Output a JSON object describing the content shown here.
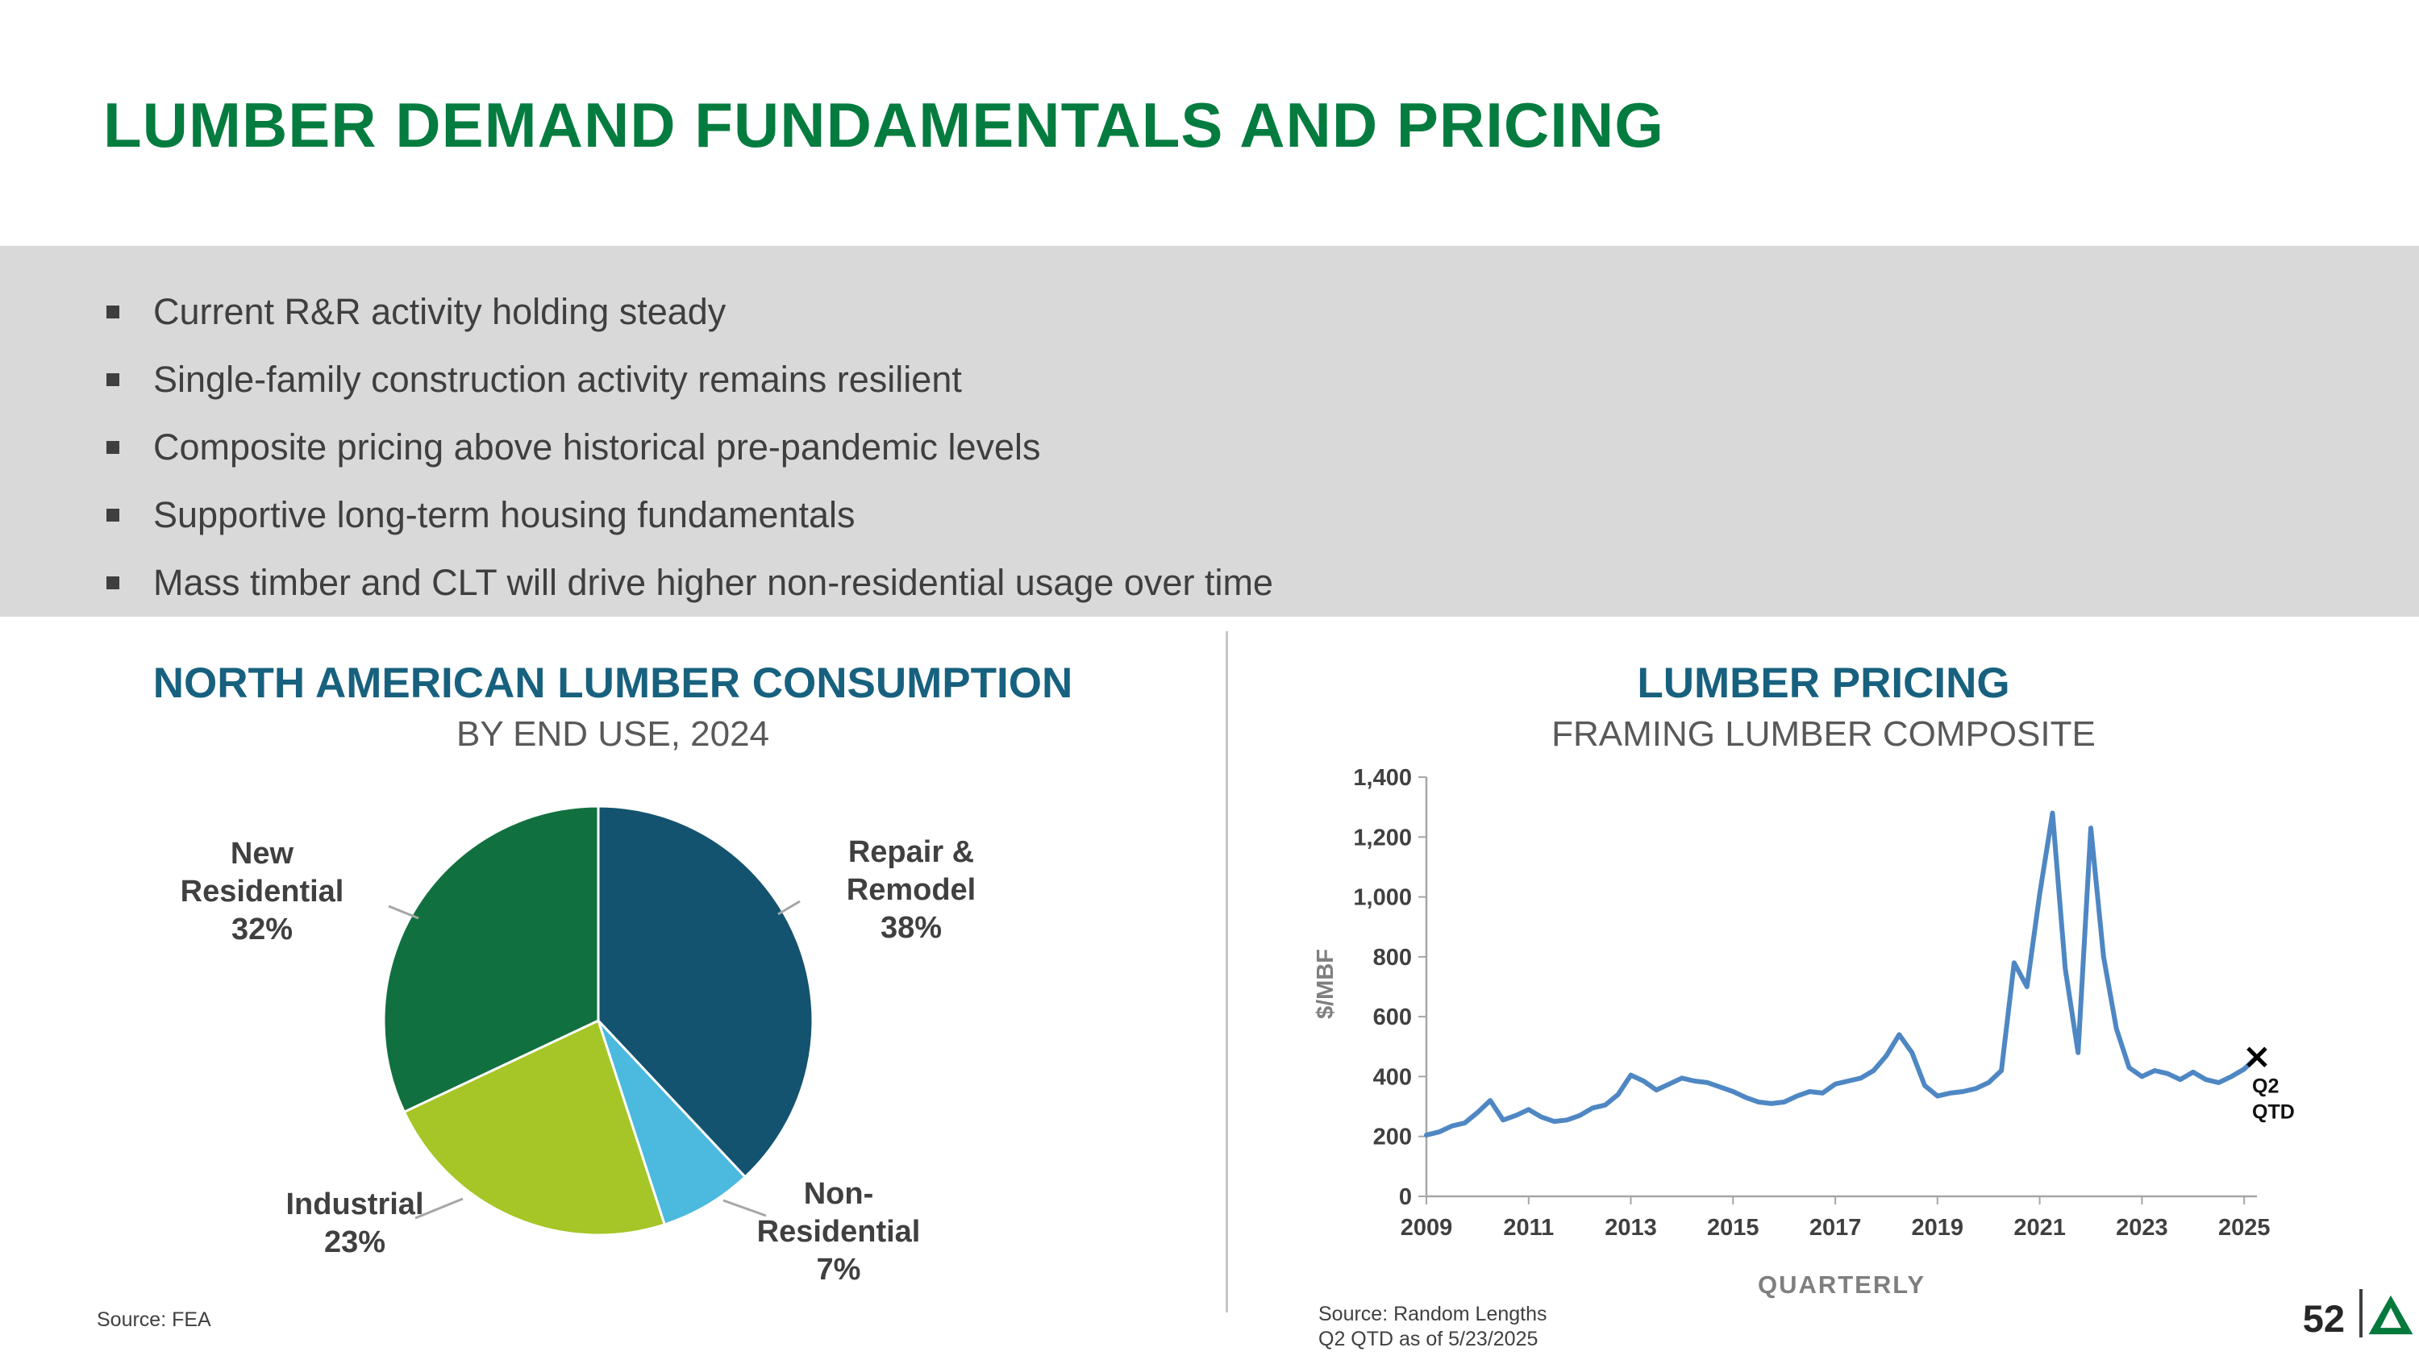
{
  "slide": {
    "title": "LUMBER DEMAND FUNDAMENTALS AND PRICING",
    "page_number": "52"
  },
  "highlights": {
    "items": [
      "Current R&R activity holding steady",
      "Single-family construction activity remains resilient",
      "Composite pricing above historical pre-pandemic levels",
      "Supportive long-term housing fundamentals",
      "Mass timber and CLT will drive higher non-residential usage over time"
    ]
  },
  "pie_section": {
    "title": "NORTH AMERICAN LUMBER CONSUMPTION",
    "subtitle": "BY END USE, 2024",
    "source": "Source: FEA"
  },
  "line_section": {
    "title": "LUMBER PRICING",
    "subtitle": "FRAMING LUMBER COMPOSITE",
    "source_line1": "Source: Random Lengths",
    "source_line2": "Q2 QTD as of 5/23/2025"
  },
  "colors": {
    "title_green": "#047c3f",
    "heading_teal": "#17617f",
    "band_gray": "#d9d9d9",
    "bullet_gray": "#3f3f3f",
    "logo_green": "#05793c"
  },
  "chart_data": [
    {
      "type": "pie",
      "title": "NORTH AMERICAN LUMBER CONSUMPTION",
      "subtitle": "BY END USE, 2024",
      "start_angle_deg": 0,
      "direction": "clockwise",
      "slices": [
        {
          "label": "Repair & Remodel",
          "label_lines": [
            "Repair &",
            "Remodel"
          ],
          "value": 38,
          "pct": "38%",
          "color": "#14536f"
        },
        {
          "label": "Non-Residential",
          "label_lines": [
            "Non-",
            "Residential"
          ],
          "value": 7,
          "pct": "7%",
          "color": "#4cb9de"
        },
        {
          "label": "Industrial",
          "label_lines": [
            "Industrial"
          ],
          "value": 23,
          "pct": "23%",
          "color": "#a5c626"
        },
        {
          "label": "New Residential",
          "label_lines": [
            "New",
            "Residential"
          ],
          "value": 32,
          "pct": "32%",
          "color": "#11703f"
        }
      ]
    },
    {
      "type": "line",
      "title": "LUMBER PRICING",
      "subtitle": "FRAMING LUMBER COMPOSITE",
      "xlabel": "QUARTERLY",
      "ylabel": "$/MBF",
      "ylim": [
        0,
        1400
      ],
      "ytick_step": 200,
      "x_tick_labels": [
        "2009",
        "2011",
        "2013",
        "2015",
        "2017",
        "2019",
        "2021",
        "2023",
        "2025"
      ],
      "x_tick_positions": [
        0,
        8,
        16,
        24,
        32,
        40,
        48,
        56,
        64
      ],
      "grid": false,
      "legend": "none",
      "series": [
        {
          "name": "Framing Lumber Composite",
          "color": "#4e87c3",
          "x_start": "2009 Q1",
          "x_end": "2025 Q2",
          "values": [
            205,
            215,
            235,
            245,
            280,
            320,
            255,
            270,
            290,
            265,
            250,
            255,
            270,
            295,
            305,
            340,
            405,
            385,
            355,
            375,
            395,
            385,
            380,
            365,
            350,
            330,
            315,
            310,
            315,
            335,
            350,
            345,
            375,
            385,
            395,
            420,
            470,
            540,
            480,
            370,
            335,
            345,
            350,
            360,
            380,
            420,
            780,
            700,
            1010,
            1280,
            760,
            480,
            1230,
            800,
            560,
            430,
            400,
            420,
            410,
            390,
            415,
            390,
            380,
            400,
            425,
            465
          ]
        }
      ],
      "end_marker": {
        "symbol": "x",
        "label_line1": "Q2",
        "label_line2": "QTD"
      }
    }
  ]
}
